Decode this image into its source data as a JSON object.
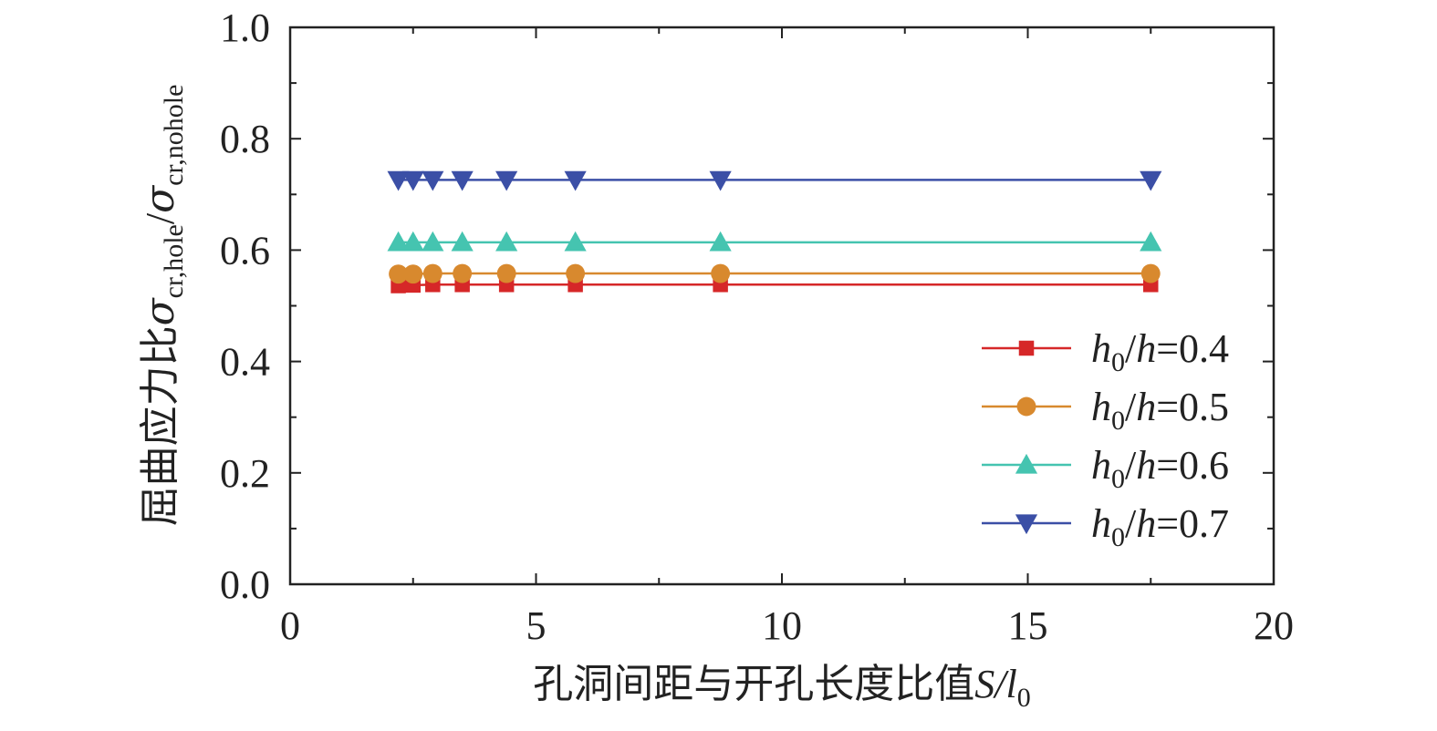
{
  "chart_data": {
    "type": "line",
    "xlabel": {
      "text": "孔洞间距与开孔长度比值",
      "var": "S/l",
      "sub": "0"
    },
    "ylabel": {
      "text": "屈曲应力比",
      "num": "σ",
      "num_sub": "cr,hole",
      "slash": "/",
      "den": "σ",
      "den_sub": "cr,nohole"
    },
    "xlim": [
      0,
      20
    ],
    "ylim": [
      0.0,
      1.0
    ],
    "x_ticks": [
      "0",
      "5",
      "10",
      "15",
      "20"
    ],
    "y_ticks": [
      "0.0",
      "0.2",
      "0.4",
      "0.6",
      "0.8",
      "1.0"
    ],
    "grid": false,
    "legend_position": "right-center",
    "x": [
      2.2,
      2.5,
      2.9,
      3.5,
      4.4,
      5.8,
      8.75,
      17.5
    ],
    "series": [
      {
        "name": "h0/h=0.4",
        "label_pre": "h",
        "label_sub": "0",
        "label_post": "/h=0.4",
        "color": "#d62728",
        "marker": "square",
        "values": [
          0.536,
          0.537,
          0.538,
          0.538,
          0.538,
          0.538,
          0.538,
          0.538
        ]
      },
      {
        "name": "h0/h=0.5",
        "label_pre": "h",
        "label_sub": "0",
        "label_post": "/h=0.5",
        "color": "#d8892e",
        "marker": "circle",
        "values": [
          0.557,
          0.557,
          0.558,
          0.558,
          0.558,
          0.558,
          0.558,
          0.558
        ]
      },
      {
        "name": "h0/h=0.6",
        "label_pre": "h",
        "label_sub": "0",
        "label_post": "/h=0.6",
        "color": "#45c4b0",
        "marker": "triangle-up",
        "values": [
          0.614,
          0.614,
          0.614,
          0.614,
          0.614,
          0.614,
          0.614,
          0.614
        ]
      },
      {
        "name": "h0/h=0.7",
        "label_pre": "h",
        "label_sub": "0",
        "label_post": "/h=0.7",
        "color": "#3b4fa6",
        "marker": "triangle-down",
        "values": [
          0.726,
          0.726,
          0.726,
          0.726,
          0.726,
          0.726,
          0.726,
          0.726
        ]
      }
    ]
  }
}
